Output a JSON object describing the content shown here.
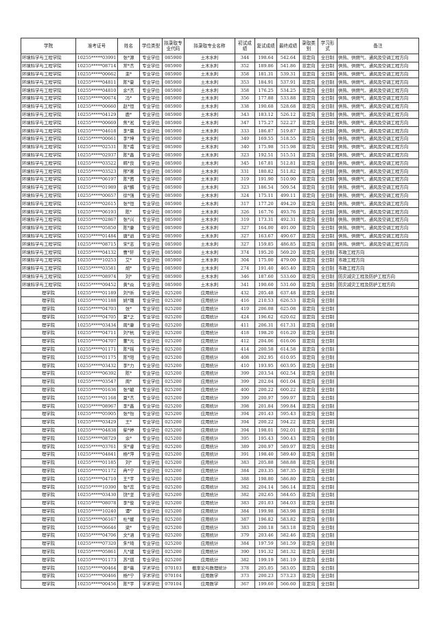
{
  "headers": [
    "学院",
    "准考证号",
    "姓名",
    "学位类型",
    "拟录取专业代码",
    "拟录取专业名称",
    "初试成绩",
    "复试成绩",
    "最终成绩",
    "录取类别",
    "学习形式",
    "备注"
  ],
  "rows": [
    [
      "环境科学与工程学院",
      "10255*****03991",
      "张*源",
      "专业学位",
      "085900",
      "土木水利",
      "344",
      "198.64",
      "542.64",
      "非定向",
      "全日制",
      "供热、供燃气、通风及空调工程方向"
    ],
    [
      "环境科学与工程学院",
      "10255*****08714",
      "常*杰",
      "专业学位",
      "085900",
      "土木水利",
      "352",
      "189.86",
      "541.86",
      "非定向",
      "全日制",
      "供热、供燃气、通风及空调工程方向"
    ],
    [
      "环境科学与工程学院",
      "10255*****00662",
      "栾*",
      "专业学位",
      "085900",
      "土木水利",
      "358",
      "181.31",
      "539.31",
      "非定向",
      "全日制",
      "供热、供燃气、通风及空调工程方向"
    ],
    [
      "环境科学与工程学院",
      "10255*****04811",
      "陈*豪",
      "专业学位",
      "085900",
      "土木水利",
      "353",
      "184.91",
      "537.91",
      "非定向",
      "全日制",
      "供热、供燃气、通风及空调工程方向"
    ],
    [
      "环境科学与工程学院",
      "10255*****04810",
      "余*杰",
      "专业学位",
      "085900",
      "土木水利",
      "358",
      "176.25",
      "534.25",
      "非定向",
      "全日制",
      "供热、供燃气、通风及空调工程方向"
    ],
    [
      "环境科学与工程学院",
      "10255*****00674",
      "冯*",
      "专业学位",
      "085900",
      "土木水利",
      "356",
      "177.88",
      "533.88",
      "非定向",
      "全日制",
      "供热、供燃气、通风及空调工程方向"
    ],
    [
      "环境科学与工程学院",
      "10255*****00660",
      "赵*恒",
      "专业学位",
      "085900",
      "土木水利",
      "338",
      "190.68",
      "528.68",
      "非定向",
      "全日制",
      "供热、供燃气、通风及空调工程方向"
    ],
    [
      "环境科学与工程学院",
      "10255*****04129",
      "鹿*",
      "专业学位",
      "085900",
      "土木水利",
      "343",
      "183.12",
      "526.12",
      "非定向",
      "全日制",
      "供热、供燃气、通风及空调工程方向"
    ],
    [
      "环境科学与工程学院",
      "10255*****00669",
      "焦*淞",
      "专业学位",
      "085900",
      "土木水利",
      "347",
      "175.27",
      "522.27",
      "非定向",
      "全日制",
      "供热、供燃气、通风及空调工程方向"
    ],
    [
      "环境科学与工程学院",
      "10255*****04618",
      "李*晨",
      "专业学位",
      "085900",
      "土木水利",
      "333",
      "186.87",
      "519.87",
      "非定向",
      "全日制",
      "供热、供燃气、通风及空调工程方向"
    ],
    [
      "环境科学与工程学院",
      "10255*****00661",
      "李*坤",
      "专业学位",
      "085900",
      "土木水利",
      "349",
      "169.55",
      "518.55",
      "非定向",
      "全日制",
      "供热、供燃气、通风及空调工程方向"
    ],
    [
      "环境科学与工程学院",
      "10255*****02531",
      "陈*甫",
      "专业学位",
      "085900",
      "土木水利",
      "340",
      "175.98",
      "515.98",
      "非定向",
      "全日制",
      "供热、供燃气、通风及空调工程方向"
    ],
    [
      "环境科学与工程学院",
      "10255*****02937",
      "陈*鑫",
      "专业学位",
      "085900",
      "土木水利",
      "323",
      "192.51",
      "515.51",
      "非定向",
      "全日制",
      "供热、供燃气、通风及空调工程方向"
    ],
    [
      "环境科学与工程学院",
      "10255*****03522",
      "韩*良",
      "专业学位",
      "085900",
      "土木水利",
      "345",
      "167.81",
      "512.81",
      "非定向",
      "全日制",
      "供热、供燃气、通风及空调工程方向"
    ],
    [
      "环境科学与工程学院",
      "10255*****03523",
      "邢*寒",
      "专业学位",
      "085900",
      "土木水利",
      "331",
      "180.82",
      "511.82",
      "非定向",
      "全日制",
      "供热、供燃气、通风及空调工程方向"
    ],
    [
      "环境科学与工程学院",
      "10255*****06197",
      "陈*茜",
      "专业学位",
      "085900",
      "土木水利",
      "319",
      "191.90",
      "510.90",
      "非定向",
      "全日制",
      "供热、供燃气、通风及空调工程方向"
    ],
    [
      "环境科学与工程学院",
      "10255*****01989",
      "袁*麟",
      "专业学位",
      "085900",
      "土木水利",
      "323",
      "186.54",
      "509.54",
      "非定向",
      "全日制",
      "供热、供燃气、通风及空调工程方向"
    ],
    [
      "环境科学与工程学院",
      "10255*****00657",
      "徐*强",
      "专业学位",
      "085900",
      "土木水利",
      "324",
      "175.11",
      "499.11",
      "非定向",
      "全日制",
      "供热、供燃气、通风及空调工程方向"
    ],
    [
      "环境科学与工程学院",
      "10255*****02615",
      "张*恒",
      "专业学位",
      "085900",
      "土木水利",
      "317",
      "177.20",
      "494.20",
      "非定向",
      "全日制",
      "供热、供燃气、通风及空调工程方向"
    ],
    [
      "环境科学与工程学院",
      "10255*****06193",
      "陈*",
      "专业学位",
      "085900",
      "土木水利",
      "326",
      "167.76",
      "493.76",
      "非定向",
      "全日制",
      "供热、供燃气、通风及空调工程方向"
    ],
    [
      "环境科学与工程学院",
      "10255*****02867",
      "张*兴",
      "专业学位",
      "085900",
      "土木水利",
      "319",
      "173.31",
      "492.31",
      "非定向",
      "全日制",
      "供热、供燃气、通风及空调工程方向"
    ],
    [
      "环境科学与工程学院",
      "10255*****05850",
      "陈*康",
      "专业学位",
      "085900",
      "土木水利",
      "327",
      "164.00",
      "491.00",
      "非定向",
      "全日制",
      "供热、供燃气、通风及空调工程方向"
    ],
    [
      "环境科学与工程学院",
      "10255*****01484",
      "唐*逍",
      "专业学位",
      "085900",
      "土木水利",
      "327",
      "163.67",
      "490.67",
      "非定向",
      "全日制",
      "供热、供燃气、通风及空调工程方向"
    ],
    [
      "环境科学与工程学院",
      "10255*****08715",
      "宋*志",
      "专业学位",
      "085900",
      "土木水利",
      "327",
      "159.85",
      "486.85",
      "非定向",
      "全日制",
      "供热、供燃气、通风及空调工程方向"
    ],
    [
      "环境科学与工程学院",
      "10255*****04132",
      "曹*轩",
      "专业学位",
      "085900",
      "土木水利",
      "374",
      "195.20",
      "569.20",
      "非定向",
      "全日制",
      "市政工程方向"
    ],
    [
      "环境科学与工程学院",
      "10255*****10253",
      "艾*",
      "专业学位",
      "085900",
      "土木水利",
      "304",
      "175.00",
      "479.00",
      "非定向",
      "全日制",
      "市政工程方向"
    ],
    [
      "环境科学与工程学院",
      "10255*****03581",
      "胡*",
      "专业学位",
      "085900",
      "土木水利",
      "274",
      "191.40",
      "465.40",
      "非定向",
      "全日制",
      "市政工程方向"
    ],
    [
      "环境科学与工程学院",
      "10255*****08974",
      "刘*",
      "专业学位",
      "085900",
      "土木水利",
      "346",
      "187.60",
      "533.60",
      "非定向",
      "全日制",
      "防灾减灾工程及防护工程方向"
    ],
    [
      "环境科学与工程学院",
      "10255*****09452",
      "黄*焱",
      "专业学位",
      "085900",
      "土木水利",
      "341",
      "190.60",
      "531.60",
      "非定向",
      "全日制",
      "防灾减灾工程及防护工程方向"
    ],
    [
      "理学院",
      "10255*****01189",
      "刘*昕",
      "专业学位",
      "025200",
      "应用统计",
      "432",
      "205.48",
      "637.48",
      "非定向",
      "全日制",
      ""
    ],
    [
      "理学院",
      "10255*****01188",
      "姚*璐",
      "专业学位",
      "025200",
      "应用统计",
      "416",
      "210.53",
      "626.53",
      "非定向",
      "全日制",
      ""
    ],
    [
      "理学院",
      "10255*****04703",
      "张*",
      "专业学位",
      "025200",
      "应用统计",
      "419",
      "206.08",
      "625.08",
      "非定向",
      "全日制",
      ""
    ],
    [
      "理学院",
      "10255*****04705",
      "夏*之",
      "专业学位",
      "025200",
      "应用统计",
      "424",
      "196.62",
      "620.62",
      "非定向",
      "全日制",
      ""
    ],
    [
      "理学院",
      "10255*****03434",
      "周*康",
      "专业学位",
      "025200",
      "应用统计",
      "411",
      "206.31",
      "617.31",
      "非定向",
      "全日制",
      ""
    ],
    [
      "理学院",
      "10255*****04711",
      "刘*杭",
      "专业学位",
      "025200",
      "应用统计",
      "418",
      "198.20",
      "616.20",
      "非定向",
      "全日制",
      ""
    ],
    [
      "理学院",
      "10255*****04707",
      "董*元",
      "专业学位",
      "025200",
      "应用统计",
      "412",
      "204.06",
      "616.06",
      "非定向",
      "全日制",
      ""
    ],
    [
      "理学院",
      "10255*****01171",
      "陈*瑶",
      "专业学位",
      "025200",
      "应用统计",
      "414",
      "200.58",
      "614.58",
      "非定向",
      "全日制",
      ""
    ],
    [
      "理学院",
      "10255*****01175",
      "陈*阳",
      "专业学位",
      "025200",
      "应用统计",
      "408",
      "202.95",
      "610.95",
      "非定向",
      "全日制",
      ""
    ],
    [
      "理学院",
      "10255*****03432",
      "李*力",
      "专业学位",
      "025200",
      "应用统计",
      "410",
      "193.95",
      "603.95",
      "非定向",
      "全日制",
      ""
    ],
    [
      "理学院",
      "10255*****06392",
      "陈*",
      "专业学位",
      "025200",
      "应用统计",
      "399",
      "203.54",
      "602.54",
      "非定向",
      "全日制",
      ""
    ],
    [
      "理学院",
      "10255*****03547",
      "周*",
      "专业学位",
      "025200",
      "应用统计",
      "399",
      "202.04",
      "601.04",
      "非定向",
      "全日制",
      ""
    ],
    [
      "理学院",
      "10255*****01636",
      "张*毓",
      "专业学位",
      "025200",
      "应用统计",
      "400",
      "200.22",
      "600.22",
      "非定向",
      "全日制",
      ""
    ],
    [
      "理学院",
      "10255*****01168",
      "夏*杰",
      "专业学位",
      "025200",
      "应用统计",
      "399",
      "200.97",
      "599.97",
      "非定向",
      "全日制",
      ""
    ],
    [
      "理学院",
      "10255*****08967",
      "李*鑫",
      "专业学位",
      "025200",
      "应用统计",
      "398",
      "201.84",
      "599.84",
      "非定向",
      "全日制",
      ""
    ],
    [
      "理学院",
      "10255*****05905",
      "张*怡",
      "专业学位",
      "025200",
      "应用统计",
      "394",
      "201.43",
      "595.43",
      "非定向",
      "全日制",
      ""
    ],
    [
      "理学院",
      "10255*****03429",
      "王*",
      "专业学位",
      "025200",
      "应用统计",
      "394",
      "200.22",
      "594.22",
      "非定向",
      "全日制",
      ""
    ],
    [
      "理学院",
      "10255*****04838",
      "柴*婷",
      "专业学位",
      "025200",
      "应用统计",
      "394",
      "198.01",
      "592.01",
      "非定向",
      "全日制",
      ""
    ],
    [
      "理学院",
      "10255*****08729",
      "余*",
      "专业学位",
      "025200",
      "应用统计",
      "395",
      "195.43",
      "590.43",
      "非定向",
      "全日制",
      ""
    ],
    [
      "理学院",
      "10255*****03761",
      "宋*睿",
      "专业学位",
      "025200",
      "应用统计",
      "389",
      "200.97",
      "589.97",
      "非定向",
      "全日制",
      ""
    ],
    [
      "理学院",
      "10255*****04841",
      "杨*萍",
      "专业学位",
      "025200",
      "应用统计",
      "391",
      "198.40",
      "589.40",
      "非定向",
      "全日制",
      ""
    ],
    [
      "理学院",
      "10255*****01185",
      "刘*",
      "专业学位",
      "025200",
      "应用统计",
      "383",
      "205.88",
      "588.88",
      "非定向",
      "全日制",
      ""
    ],
    [
      "理学院",
      "10255*****01172",
      "冉*宁",
      "专业学位",
      "025200",
      "应用统计",
      "384",
      "203.35",
      "587.35",
      "非定向",
      "全日制",
      ""
    ],
    [
      "理学院",
      "10255*****04710",
      "王*宇",
      "专业学位",
      "025200",
      "应用统计",
      "388",
      "198.80",
      "586.80",
      "非定向",
      "全日制",
      ""
    ],
    [
      "理学院",
      "10255*****10390",
      "张*蕊",
      "专业学位",
      "025200",
      "应用统计",
      "382",
      "204.14",
      "586.14",
      "非定向",
      "全日制",
      ""
    ],
    [
      "理学院",
      "10255*****03430",
      "饶*坚",
      "专业学位",
      "025200",
      "应用统计",
      "382",
      "202.65",
      "584.65",
      "非定向",
      "全日制",
      ""
    ],
    [
      "理学院",
      "10255*****08078",
      "李*俊",
      "专业学位",
      "025200",
      "应用统计",
      "383",
      "201.03",
      "584.03",
      "非定向",
      "全日制",
      ""
    ],
    [
      "理学院",
      "10255*****10240",
      "谭*",
      "专业学位",
      "025200",
      "应用统计",
      "384",
      "199.98",
      "583.98",
      "非定向",
      "全日制",
      ""
    ],
    [
      "理学院",
      "10255*****06167",
      "杜*媛",
      "专业学位",
      "025200",
      "应用统计",
      "387",
      "196.82",
      "583.82",
      "非定向",
      "全日制",
      ""
    ],
    [
      "理学院",
      "10255*****06646",
      "梁*",
      "专业学位",
      "025200",
      "应用统计",
      "383",
      "200.18",
      "583.18",
      "非定向",
      "全日制",
      ""
    ],
    [
      "理学院",
      "10255*****04706",
      "文*涵",
      "专业学位",
      "025200",
      "应用统计",
      "379",
      "203.46",
      "582.46",
      "非定向",
      "全日制",
      ""
    ],
    [
      "理学院",
      "10255*****07320",
      "朱*琦",
      "专业学位",
      "025200",
      "应用统计",
      "384",
      "197.59",
      "581.59",
      "非定向",
      "全日制",
      ""
    ],
    [
      "理学院",
      "10255*****05861",
      "凡*建",
      "专业学位",
      "025200",
      "应用统计",
      "390",
      "191.32",
      "581.32",
      "非定向",
      "全日制",
      ""
    ],
    [
      "理学院",
      "10255*****01173",
      "苏*琪",
      "专业学位",
      "025200",
      "应用统计",
      "382",
      "199.19",
      "581.19",
      "非定向",
      "全日制",
      ""
    ],
    [
      "理学院",
      "10255*****00464",
      "姜*薇",
      "学术学位",
      "070103",
      "概率论与数理统计",
      "378",
      "205.05",
      "583.05",
      "非定向",
      "全日制",
      ""
    ],
    [
      "理学院",
      "10255*****00466",
      "杨*宁",
      "学术学位",
      "070104",
      "应用数学",
      "373",
      "200.23",
      "573.23",
      "非定向",
      "全日制",
      ""
    ],
    [
      "理学院",
      "10255*****00456",
      "陈*宇",
      "学术学位",
      "070104",
      "应用数学",
      "367",
      "199.60",
      "566.60",
      "非定向",
      "全日制",
      ""
    ]
  ]
}
